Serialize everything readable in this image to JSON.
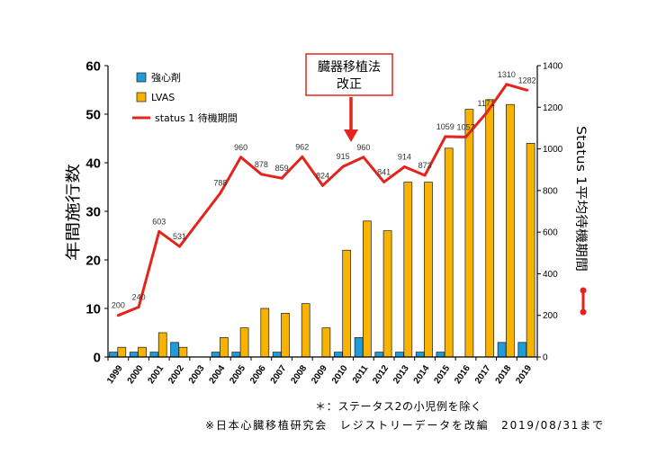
{
  "chart_data": {
    "type": "bar",
    "categories": [
      "1999",
      "2000",
      "2001",
      "2002",
      "2003",
      "2004",
      "2005",
      "2006",
      "2007",
      "2008",
      "2009",
      "2010",
      "2011",
      "2012",
      "2013",
      "2014",
      "2015",
      "2016",
      "2017",
      "2018",
      "2019"
    ],
    "series": [
      {
        "name": "強心剤",
        "type": "bar",
        "axis": "left",
        "color": "#1f9bd7",
        "values": [
          1,
          1,
          1,
          3,
          0,
          1,
          1,
          0,
          1,
          0,
          0,
          1,
          4,
          1,
          1,
          1,
          1,
          0,
          0,
          3,
          3
        ]
      },
      {
        "name": "LVAS",
        "type": "bar",
        "axis": "left",
        "color": "#f7b300",
        "values": [
          2,
          2,
          5,
          2,
          0,
          4,
          6,
          10,
          9,
          11,
          6,
          22,
          28,
          26,
          36,
          36,
          43,
          51,
          53,
          52,
          44
        ]
      },
      {
        "name": "status 1 待機期間",
        "type": "line",
        "axis": "right",
        "color": "#e5231d",
        "values": [
          200,
          240,
          603,
          531,
          null,
          788,
          960,
          878,
          859,
          962,
          824,
          915,
          960,
          841,
          914,
          873,
          1059,
          1057,
          1171,
          1310,
          1282
        ]
      }
    ],
    "ylabel": "年間施行数",
    "ylim": [
      0,
      60
    ],
    "yticks": [
      0,
      10,
      20,
      30,
      40,
      50,
      60
    ],
    "y2label": "Status 1平均待機期間",
    "y2lim": [
      0,
      1400
    ],
    "y2ticks": [
      0,
      200,
      400,
      600,
      800,
      1000,
      1200,
      1400
    ],
    "grid": false,
    "legend": "top-left",
    "annotation": {
      "lines": [
        "臓器移植法",
        "改正"
      ],
      "color": "#e5231d"
    },
    "notes": [
      "＊：ステータス2の小児例を除く",
      "※日本心臓移植研究会　レジストリーデータを改編　2019/08/31まで"
    ]
  }
}
